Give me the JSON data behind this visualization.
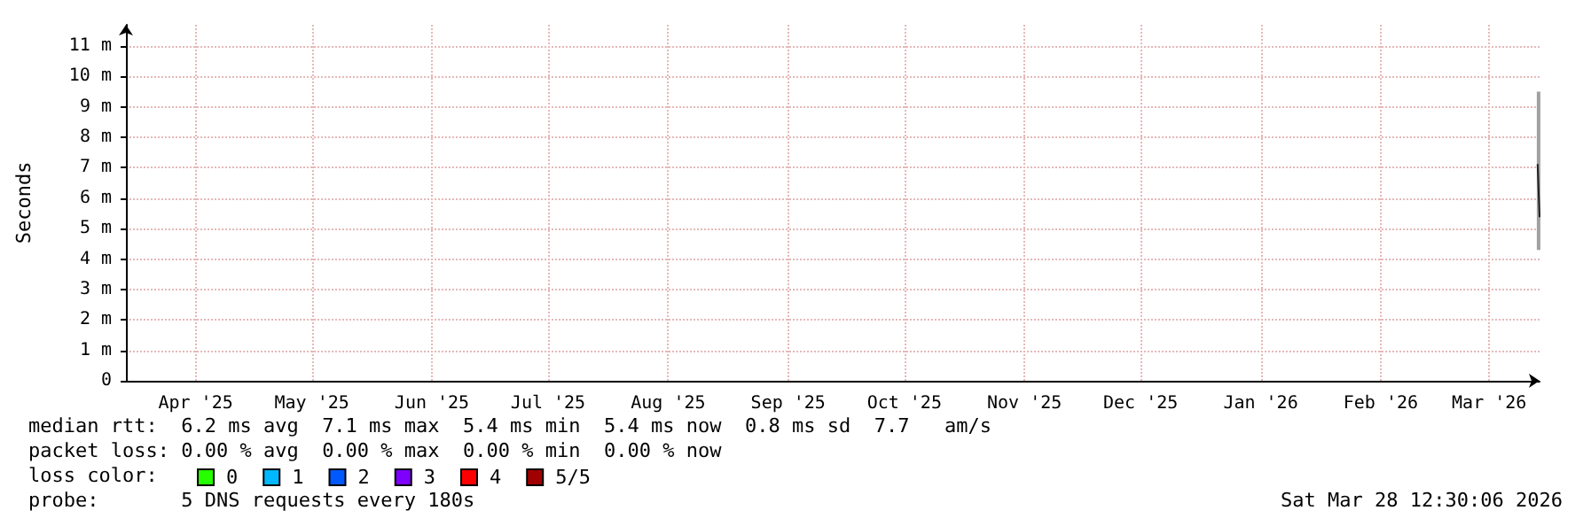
{
  "chart_data": {
    "type": "line",
    "ylabel": "Seconds",
    "legend_title": "loss color:",
    "x": [
      "2026-03-27T12:00",
      "2026-03-28T00:00"
    ],
    "xlim": [
      "2025-03-28",
      "2026-03-28"
    ],
    "xticks": [
      {
        "value": "2025-04-15",
        "label": "Apr '25"
      },
      {
        "value": "2025-05-15",
        "label": "May '25"
      },
      {
        "value": "2025-06-15",
        "label": "Jun '25"
      },
      {
        "value": "2025-07-15",
        "label": "Jul '25"
      },
      {
        "value": "2025-08-15",
        "label": "Aug '25"
      },
      {
        "value": "2025-09-15",
        "label": "Sep '25"
      },
      {
        "value": "2025-10-15",
        "label": "Oct '25"
      },
      {
        "value": "2025-11-15",
        "label": "Nov '25"
      },
      {
        "value": "2025-12-15",
        "label": "Dec '25"
      },
      {
        "value": "2026-01-15",
        "label": "Jan '26"
      },
      {
        "value": "2026-02-15",
        "label": "Feb '26"
      },
      {
        "value": "2026-03-15",
        "label": "Mar '26"
      }
    ],
    "ylim": [
      0,
      11.7
    ],
    "yticks": [
      0,
      {
        "value": 1,
        "label": "1 m"
      },
      {
        "value": 2,
        "label": "2 m"
      },
      {
        "value": 3,
        "label": "3 m"
      },
      {
        "value": 4,
        "label": "4 m"
      },
      {
        "value": 5,
        "label": "5 m"
      },
      {
        "value": 6,
        "label": "6 m"
      },
      {
        "value": 7,
        "label": "7 m"
      },
      {
        "value": 8,
        "label": "8 m"
      },
      {
        "value": 9,
        "label": "9 m"
      },
      {
        "value": 10,
        "label": "10 m"
      },
      {
        "value": 11,
        "label": "11 m"
      }
    ],
    "grid": true,
    "legend": "bottom left",
    "marker": "none",
    "line_style": "solid",
    "series": [
      {
        "type": "bar",
        "color": "#a0a0a0",
        "x": [
          "2026-03-27T18:00"
        ],
        "base": [
          4.3
        ],
        "values": [
          5.2
        ]
      },
      {
        "color": "#202020",
        "values": [
          7.1,
          5.4
        ]
      },
      {
        "type": "bar",
        "name": "0",
        "color": "#26ff00",
        "values": [
          null,
          null
        ]
      },
      {
        "type": "bar",
        "name": "1",
        "color": "#00b8ff",
        "values": [
          null,
          null
        ]
      },
      {
        "type": "bar",
        "name": "2",
        "color": "#0059ff",
        "values": [
          null,
          null
        ]
      },
      {
        "type": "bar",
        "name": "3",
        "color": "#7e00ff",
        "values": [
          null,
          null
        ]
      },
      {
        "type": "bar",
        "name": "4",
        "color": "#ff0000",
        "values": [
          null,
          null
        ]
      },
      {
        "type": "bar",
        "name": "5/5",
        "color": "#a10000",
        "values": [
          null,
          null
        ]
      }
    ],
    "annotations": [
      "median rtt:  6.2 ms avg  7.1 ms max  5.4 ms min  5.4 ms now  0.8 ms sd  7.7   am/s",
      "packet loss: 0.00 % avg  0.00 % max  0.00 % min  0.00 % now",
      "probe:       5 DNS requests every 180s",
      "Sat Mar 28 12:30:06 2026"
    ]
  }
}
